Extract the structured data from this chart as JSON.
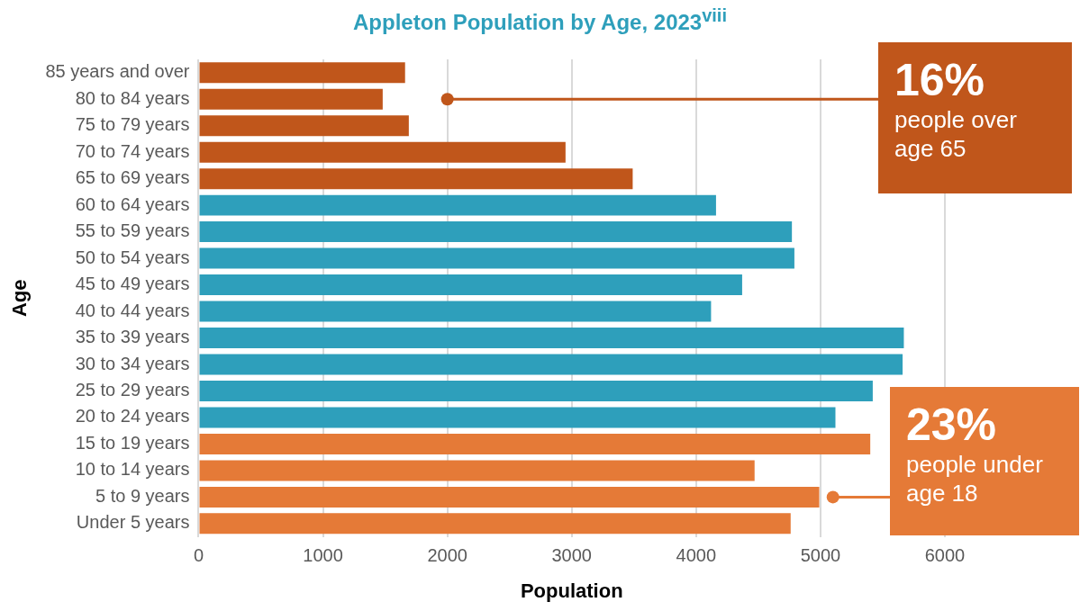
{
  "chart_data": {
    "type": "bar",
    "orientation": "horizontal",
    "title": "Appleton Population by Age, 2023$^{viii}$",
    "xlabel": "Population",
    "ylabel": "Age",
    "categories": [
      "85 years and over",
      "80 to 84 years",
      "75 to 79 years",
      "70 to 74 years",
      "65 to 69 years",
      "60 to 64 years",
      "55 to 59 years",
      "50 to 54 years",
      "45 to 49 years",
      "40 to 44 years",
      "35 to 39 years",
      "30 to 34 years",
      "25 to 29 years",
      "20 to 24 years",
      "15 to 19 years",
      "10 to 14 years",
      "5 to 9 years",
      "Under 5 years"
    ],
    "values": [
      1660,
      1480,
      1690,
      2950,
      3490,
      4160,
      4770,
      4790,
      4370,
      4120,
      5670,
      5660,
      5420,
      5120,
      5400,
      4470,
      4990,
      4760
    ],
    "colors": [
      "#c0561b",
      "#c0561b",
      "#c0561b",
      "#c0561b",
      "#c0561b",
      "#2e9fbb",
      "#2e9fbb",
      "#2e9fbb",
      "#2e9fbb",
      "#2e9fbb",
      "#2e9fbb",
      "#2e9fbb",
      "#2e9fbb",
      "#2e9fbb",
      "#e57a37",
      "#e57a37",
      "#e57a37",
      "#e57a37"
    ],
    "xlim": [
      0,
      6000
    ],
    "xticks": [
      0,
      1000,
      2000,
      3000,
      4000,
      5000,
      6000
    ],
    "grid": "x",
    "legend": false,
    "annotations": [
      {
        "text": "16%",
        "x": 2000,
        "y": "80 to 84 years"
      },
      "people over age 65",
      {
        "text": "23%",
        "x": 5100,
        "y": "5 to 9 years"
      },
      "people under age 18"
    ]
  }
}
